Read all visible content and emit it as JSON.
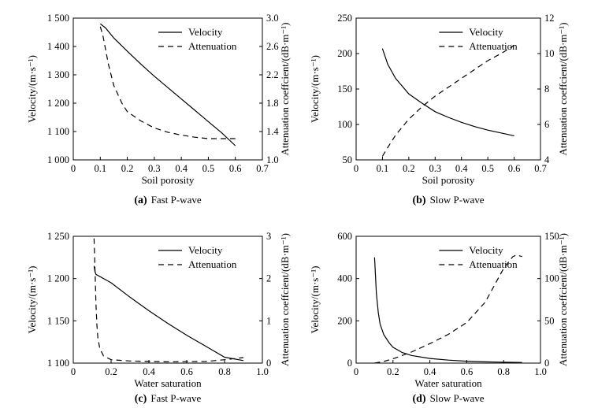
{
  "chart_data": [
    {
      "id": "a",
      "type": "line",
      "panel_tag": "(a)",
      "panel_title": "Fast P-wave",
      "xlabel": "Soil porosity",
      "ylabel": "Velocity/(m·s⁻¹)",
      "y2label": "Attenuation coeffcient/(dB·m⁻¹)",
      "xlim": [
        0,
        0.7
      ],
      "ylim": [
        1000,
        1500
      ],
      "y2lim": [
        1.0,
        3.0
      ],
      "xticks": [
        "0",
        "0.1",
        "0.2",
        "0.3",
        "0.4",
        "0.5",
        "0.6",
        "0.7"
      ],
      "yticks": [
        "1 000",
        "1 100",
        "1 200",
        "1 300",
        "1 400",
        "1 500"
      ],
      "y2ticks": [
        "1.0",
        "1.4",
        "1.8",
        "2.2",
        "2.6",
        "3.0"
      ],
      "legend_position": "top-right",
      "series": [
        {
          "name": "Velocity",
          "axis": "left",
          "style": "solid",
          "x": [
            0.1,
            0.12,
            0.15,
            0.2,
            0.25,
            0.3,
            0.35,
            0.4,
            0.45,
            0.5,
            0.55,
            0.6
          ],
          "y": [
            1480,
            1465,
            1430,
            1383,
            1338,
            1295,
            1255,
            1215,
            1175,
            1135,
            1095,
            1050
          ]
        },
        {
          "name": "Attenuation",
          "axis": "right",
          "style": "dashed",
          "x": [
            0.1,
            0.11,
            0.12,
            0.13,
            0.15,
            0.18,
            0.2,
            0.25,
            0.3,
            0.35,
            0.4,
            0.45,
            0.5,
            0.55,
            0.6
          ],
          "y": [
            2.88,
            2.75,
            2.55,
            2.35,
            2.05,
            1.8,
            1.68,
            1.55,
            1.45,
            1.39,
            1.35,
            1.32,
            1.3,
            1.3,
            1.3
          ]
        }
      ]
    },
    {
      "id": "b",
      "type": "line",
      "panel_tag": "(b)",
      "panel_title": "Slow P-wave",
      "xlabel": "Soil porosity",
      "ylabel": "Velocity/(m·s⁻¹)",
      "y2label": "Attenuation coeffcient/(dB·m⁻¹)",
      "xlim": [
        0,
        0.7
      ],
      "ylim": [
        50,
        250
      ],
      "y2lim": [
        4,
        12
      ],
      "xticks": [
        "0",
        "0.1",
        "0.2",
        "0.3",
        "0.4",
        "0.5",
        "0.6",
        "0.7"
      ],
      "yticks": [
        "50",
        "100",
        "150",
        "200",
        "250"
      ],
      "y2ticks": [
        "4",
        "6",
        "8",
        "10",
        "12"
      ],
      "legend_position": "top-right",
      "series": [
        {
          "name": "Velocity",
          "axis": "left",
          "style": "solid",
          "x": [
            0.1,
            0.12,
            0.15,
            0.2,
            0.25,
            0.3,
            0.35,
            0.4,
            0.45,
            0.5,
            0.55,
            0.6
          ],
          "y": [
            207,
            185,
            165,
            143,
            130,
            118,
            110,
            103,
            97,
            92,
            88,
            84
          ]
        },
        {
          "name": "Attenuation",
          "axis": "right",
          "style": "dashed",
          "x": [
            0.1,
            0.12,
            0.15,
            0.2,
            0.25,
            0.3,
            0.35,
            0.4,
            0.45,
            0.5,
            0.55,
            0.6
          ],
          "y": [
            4.2,
            4.7,
            5.4,
            6.3,
            7.0,
            7.6,
            8.1,
            8.6,
            9.1,
            9.6,
            10.0,
            10.45
          ]
        }
      ]
    },
    {
      "id": "c",
      "type": "line",
      "panel_tag": "(c)",
      "panel_title": "Fast P-wave",
      "xlabel": "Water saturation",
      "ylabel": "Velocity/(m·s⁻¹)",
      "y2label": "Attenuation coeffcient/(dB·m⁻¹)",
      "xlim": [
        0,
        1.0
      ],
      "ylim": [
        1100,
        1250
      ],
      "y2lim": [
        0,
        3
      ],
      "xticks": [
        "0",
        "0.2",
        "0.4",
        "0.6",
        "0.8",
        "1.0"
      ],
      "yticks": [
        "1 100",
        "1 150",
        "1 200",
        "1 250"
      ],
      "y2ticks": [
        "0",
        "1",
        "2",
        "3"
      ],
      "legend_position": "top-right",
      "series": [
        {
          "name": "Velocity",
          "axis": "left",
          "style": "solid",
          "x": [
            0.11,
            0.115,
            0.12,
            0.2,
            0.3,
            0.4,
            0.5,
            0.6,
            0.7,
            0.8,
            0.9
          ],
          "y": [
            1215,
            1208,
            1205,
            1195,
            1178,
            1162,
            1147,
            1133,
            1120,
            1107,
            1103
          ]
        },
        {
          "name": "Attenuation",
          "axis": "right",
          "style": "dashed",
          "x": [
            0.11,
            0.115,
            0.12,
            0.125,
            0.13,
            0.14,
            0.16,
            0.2,
            0.3,
            0.5,
            0.7,
            0.8,
            0.9
          ],
          "y": [
            2.95,
            2.2,
            1.4,
            0.9,
            0.6,
            0.35,
            0.17,
            0.08,
            0.05,
            0.03,
            0.04,
            0.08,
            0.13
          ]
        }
      ]
    },
    {
      "id": "d",
      "type": "line",
      "panel_tag": "(d)",
      "panel_title": "Slow P-wave",
      "xlabel": "Water saturation",
      "ylabel": "Velocity/(m·s⁻¹)",
      "y2label": "Attenuation coeffcient/(dB·m⁻¹)",
      "xlim": [
        0,
        1.0
      ],
      "ylim": [
        0,
        600
      ],
      "y2lim": [
        0,
        150
      ],
      "xticks": [
        "0",
        "0.2",
        "0.4",
        "0.6",
        "0.8",
        "1.0"
      ],
      "yticks": [
        "0",
        "200",
        "400",
        "600"
      ],
      "y2ticks": [
        "0",
        "50",
        "100",
        "150"
      ],
      "legend_position": "top-right",
      "series": [
        {
          "name": "Velocity",
          "axis": "left",
          "style": "solid",
          "x": [
            0.1,
            0.11,
            0.12,
            0.13,
            0.15,
            0.18,
            0.2,
            0.25,
            0.3,
            0.4,
            0.5,
            0.6,
            0.7,
            0.8,
            0.9
          ],
          "y": [
            500,
            330,
            240,
            185,
            135,
            95,
            75,
            50,
            36,
            22,
            14,
            9,
            6,
            4,
            3
          ]
        },
        {
          "name": "Attenuation",
          "axis": "right",
          "style": "dashed",
          "x": [
            0.1,
            0.15,
            0.2,
            0.3,
            0.4,
            0.5,
            0.6,
            0.7,
            0.75,
            0.8,
            0.85,
            0.87,
            0.9
          ],
          "y": [
            0,
            2,
            5,
            13,
            23,
            34,
            48,
            72,
            92,
            112,
            126,
            128,
            126
          ]
        }
      ]
    }
  ]
}
